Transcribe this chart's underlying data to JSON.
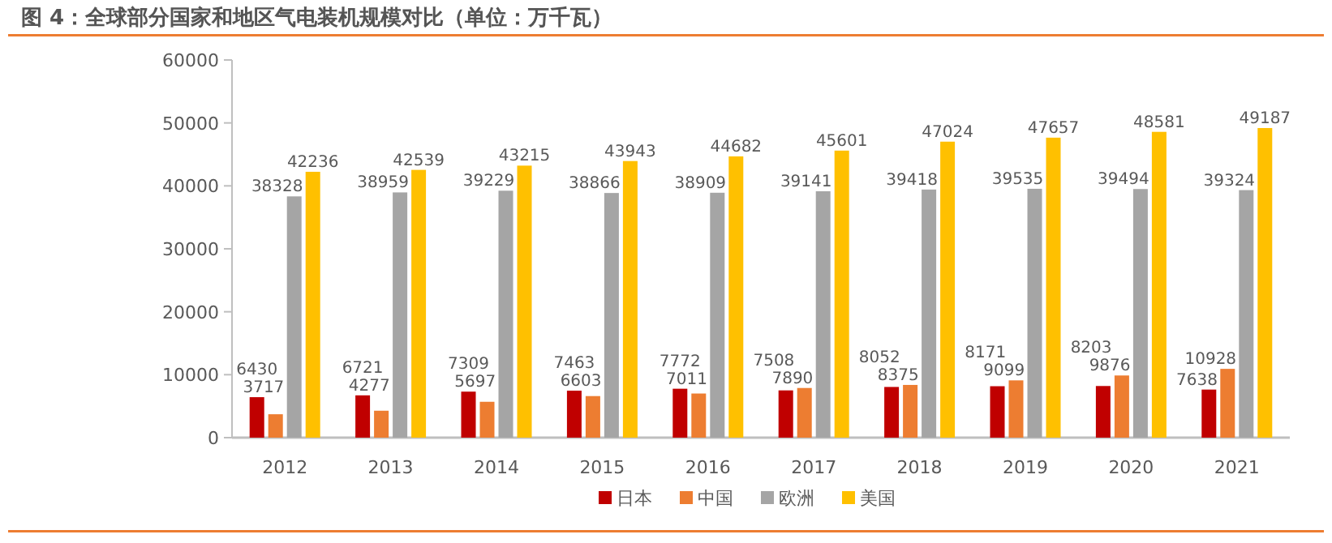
{
  "chart_data": {
    "type": "bar",
    "title": "图 4：全球部分国家和地区气电装机规模对比（单位：万千瓦）",
    "categories": [
      "2012",
      "2013",
      "2014",
      "2015",
      "2016",
      "2017",
      "2018",
      "2019",
      "2020",
      "2021"
    ],
    "series": [
      {
        "name": "日本",
        "color": "#c00000",
        "values": [
          6430,
          6721,
          7309,
          7463,
          7772,
          7508,
          8052,
          8171,
          8203,
          7638
        ]
      },
      {
        "name": "中国",
        "color": "#ed7d31",
        "values": [
          3717,
          4277,
          5697,
          6603,
          7011,
          7890,
          8375,
          9099,
          9876,
          10928
        ]
      },
      {
        "name": "欧洲",
        "color": "#a5a5a5",
        "values": [
          38328,
          38959,
          39229,
          38866,
          38909,
          39141,
          39418,
          39535,
          39494,
          39324
        ]
      },
      {
        "name": "美国",
        "color": "#ffc000",
        "values": [
          42236,
          42539,
          43215,
          43943,
          44682,
          45601,
          47024,
          47657,
          48581,
          49187
        ]
      }
    ],
    "ylim": [
      0,
      60000
    ],
    "yticks": [
      0,
      10000,
      20000,
      30000,
      40000,
      50000,
      60000
    ],
    "data_labels": true,
    "legend": "bottom",
    "grid": false
  }
}
